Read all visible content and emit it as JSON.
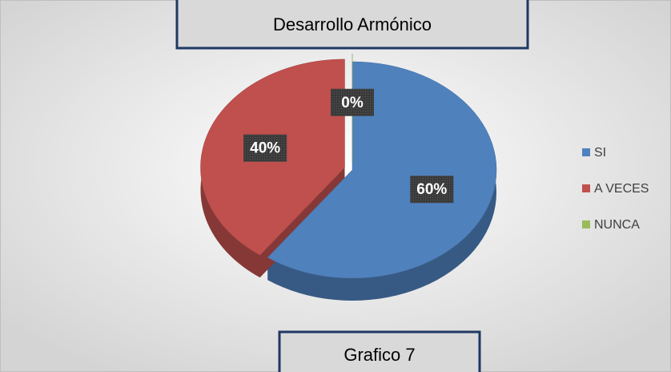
{
  "chart_data": {
    "type": "pie",
    "title": "Desarrollo Armónico",
    "annotation": "Grafico 7",
    "categories": [
      "SI",
      "A VECES",
      "NUNCA"
    ],
    "values": [
      60,
      40,
      0
    ],
    "value_labels": [
      "60%",
      "40%",
      "0%"
    ],
    "colors": [
      "#4f81bd",
      "#c0504d",
      "#9bbb59"
    ],
    "legend": "right"
  }
}
